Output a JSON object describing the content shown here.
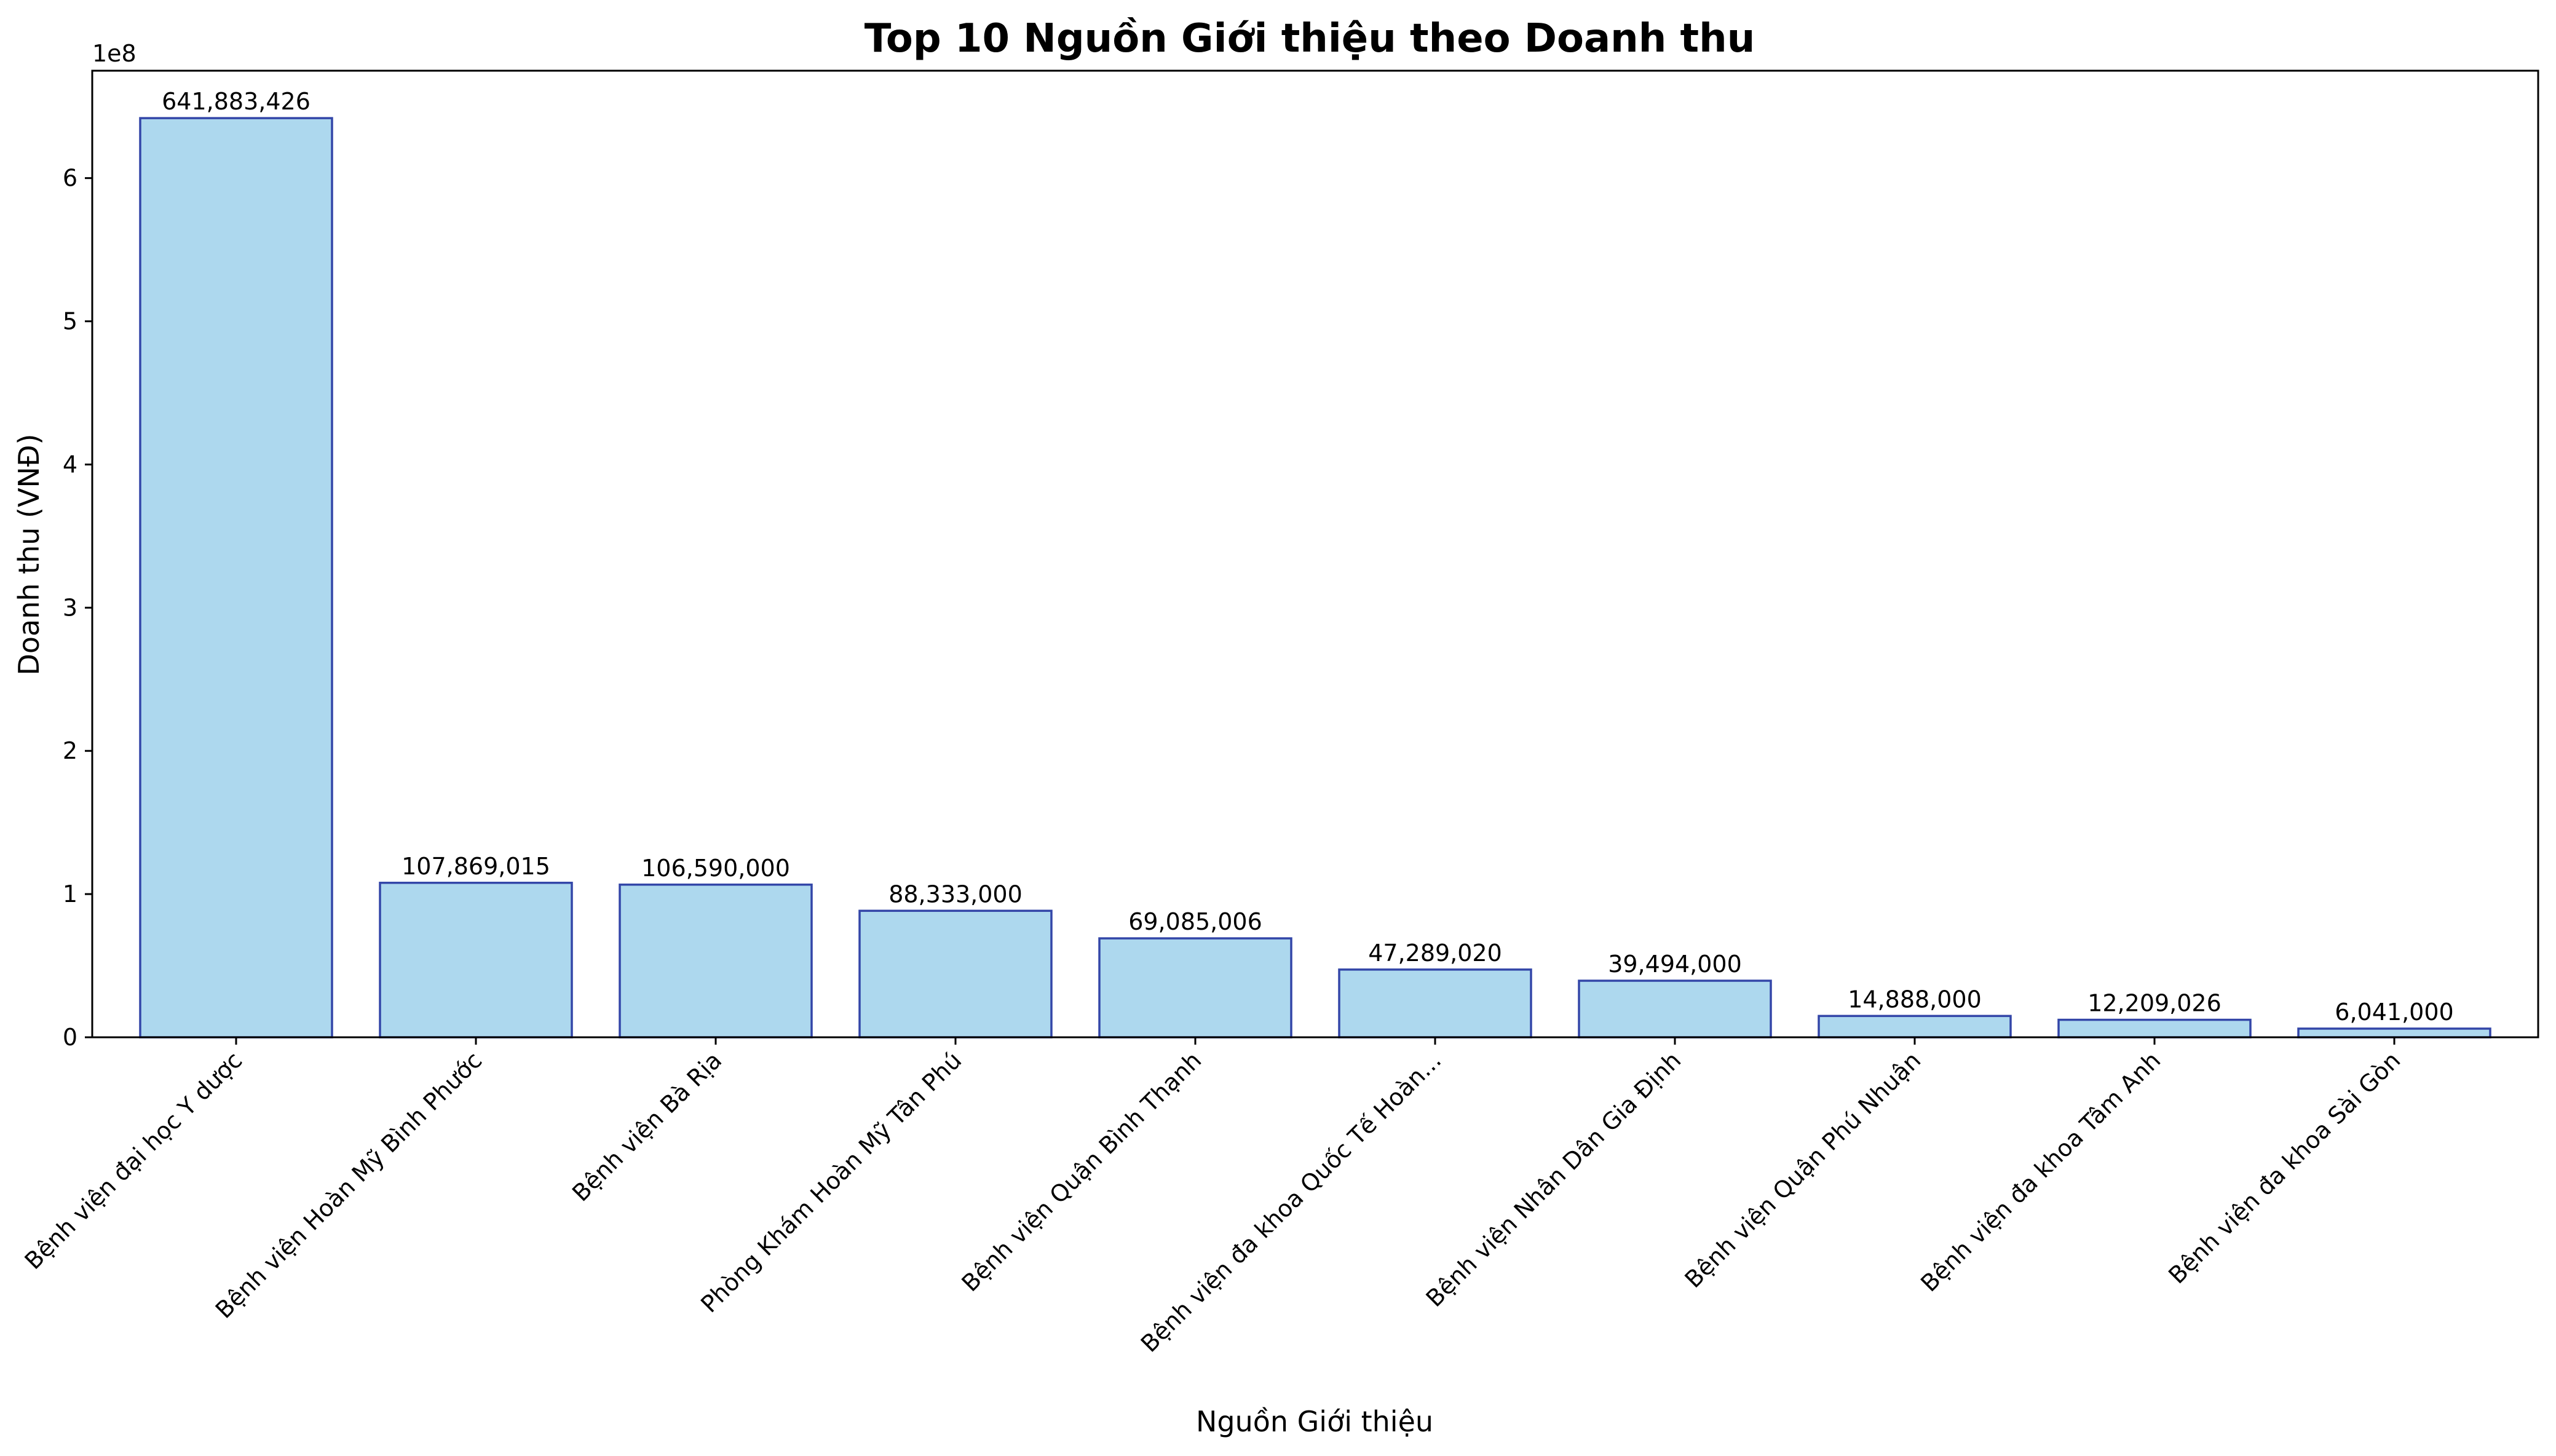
{
  "chart_data": {
    "type": "bar",
    "title": "Top 10 Nguồn Giới thiệu theo Doanh thu",
    "xlabel": "Nguồn Giới thiệu",
    "ylabel": "Doanh thu (VNĐ)",
    "offset_label": "1e8",
    "ylim": [
      0,
      675000000
    ],
    "yticks": [
      0,
      100000000,
      200000000,
      300000000,
      400000000,
      500000000,
      600000000
    ],
    "ytick_labels": [
      "0",
      "1",
      "2",
      "3",
      "4",
      "5",
      "6"
    ],
    "categories": [
      "Bệnh viện đại học Y dược",
      "Bệnh viện Hoàn Mỹ Bình Phước",
      "Bệnh viện Bà Rịa",
      "Phòng Khám Hoàn Mỹ Tân Phú",
      "Bệnh viện Quận Bình Thạnh",
      "Bệnh viện đa khoa Quốc Tế Hoàn...",
      "Bệnh viện Nhân Dân Gia Định",
      "Bệnh viện Quận Phú Nhuận",
      "Bệnh viện đa khoa Tâm Anh",
      "Bệnh viện đa khoa Sài Gòn"
    ],
    "values": [
      641883426,
      107869015,
      106590000,
      88333000,
      69085006,
      47289020,
      39494000,
      14888000,
      12209026,
      6041000
    ],
    "value_labels": [
      "641,883,426",
      "107,869,015",
      "106,590,000",
      "88,333,000",
      "69,085,006",
      "47,289,020",
      "39,494,000",
      "14,888,000",
      "12,209,026",
      "6,041,000"
    ],
    "grid": false,
    "colors": {
      "bar_fill": "#add8ee",
      "bar_edge": "#3346a8",
      "axis": "#000000"
    }
  }
}
